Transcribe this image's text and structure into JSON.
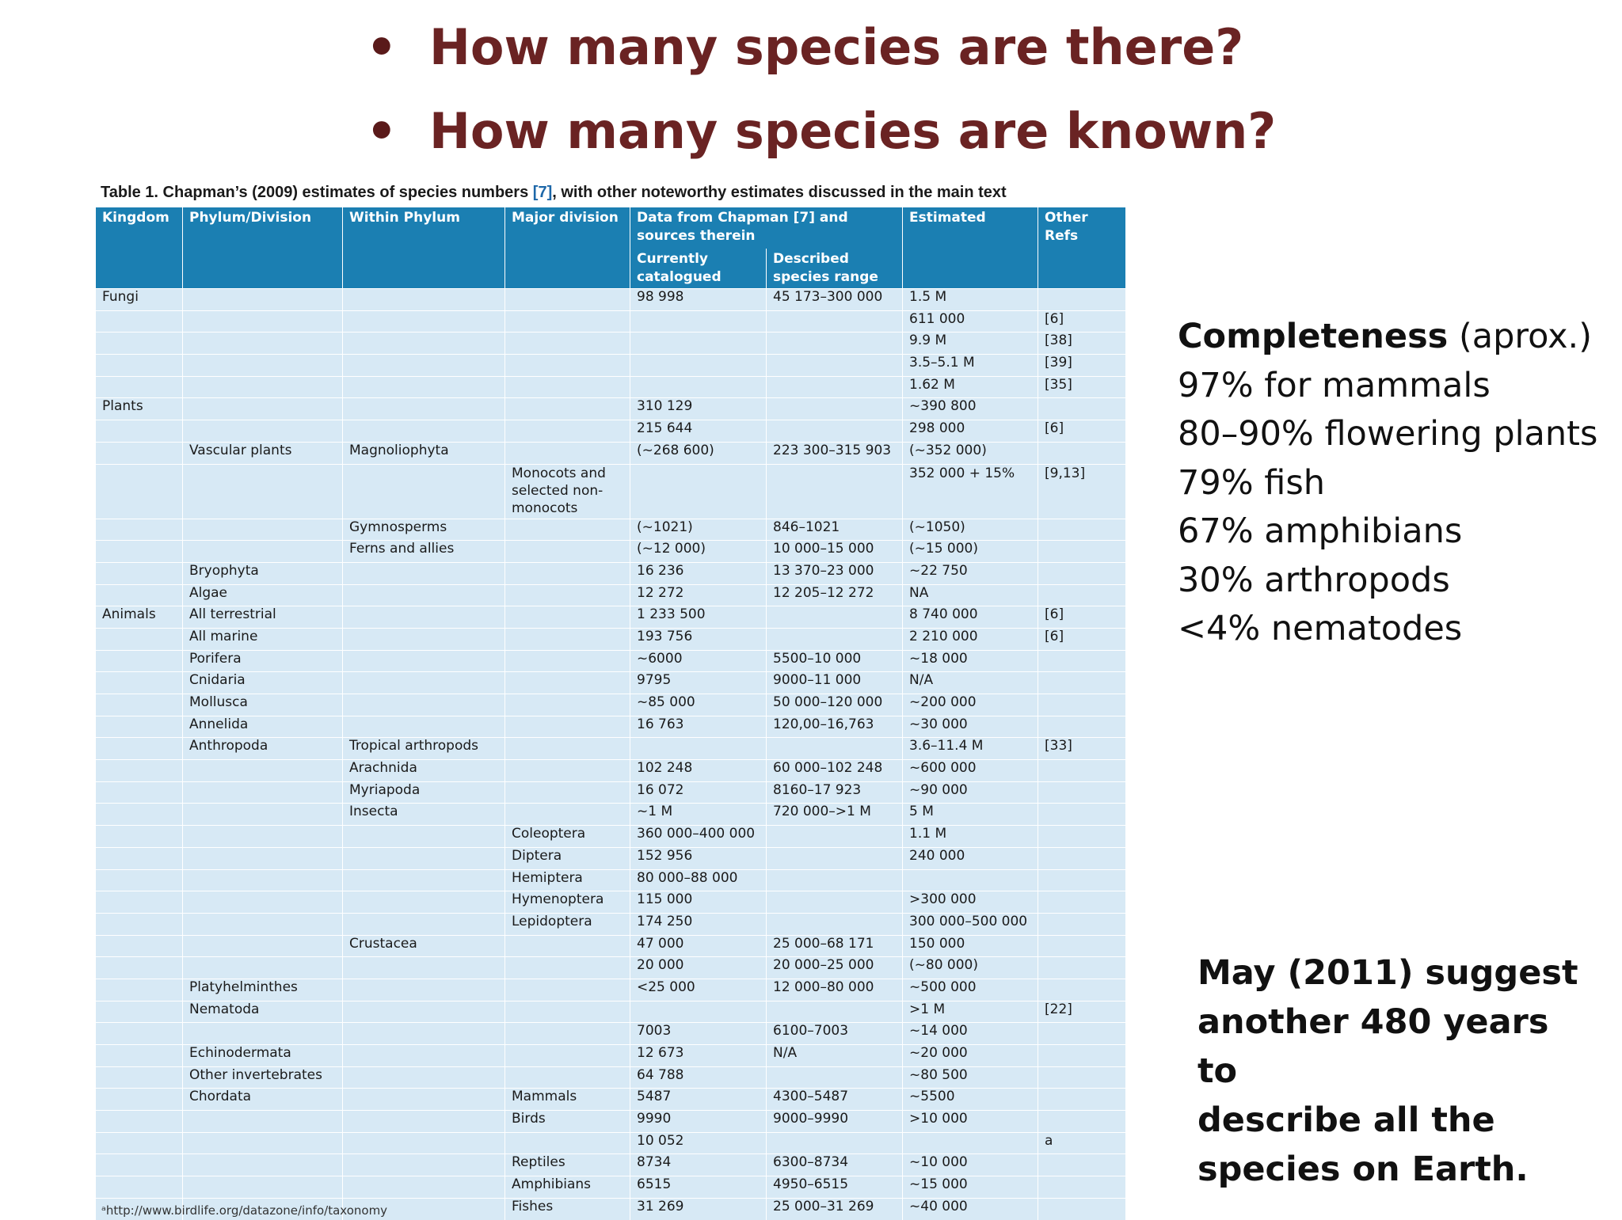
{
  "heading": {
    "bullets": [
      "How many species are there?",
      "How many species are known?"
    ],
    "bullet_glyph": "•"
  },
  "table": {
    "caption_prefix": "Table 1. Chapman’s (2009) estimates of species numbers",
    "caption_ref": "[7]",
    "caption_suffix": ", with other noteworthy estimates discussed in the main text",
    "headers": {
      "kingdom": "Kingdom",
      "phylum": "Phylum/Division",
      "within": "Within Phylum",
      "major": "Major division",
      "data_from": "Data from Chapman [7] and sources therein",
      "estimated": "Estimated",
      "other_refs": "Other Refs",
      "currently": "Currently catalogued",
      "described": "Described species range"
    },
    "rows": [
      {
        "kingdom": "Fungi",
        "phylum": "",
        "within": "",
        "major": "",
        "cat": "98 998",
        "range": "45 173–300 000",
        "est": "1.5 M",
        "refs": ""
      },
      {
        "kingdom": "",
        "phylum": "",
        "within": "",
        "major": "",
        "cat": "",
        "range": "",
        "est": "611 000",
        "refs": "[6]"
      },
      {
        "kingdom": "",
        "phylum": "",
        "within": "",
        "major": "",
        "cat": "",
        "range": "",
        "est": "9.9 M",
        "refs": "[38]"
      },
      {
        "kingdom": "",
        "phylum": "",
        "within": "",
        "major": "",
        "cat": "",
        "range": "",
        "est": "3.5–5.1 M",
        "refs": "[39]"
      },
      {
        "kingdom": "",
        "phylum": "",
        "within": "",
        "major": "",
        "cat": "",
        "range": "",
        "est": "1.62 M",
        "refs": "[35]"
      },
      {
        "kingdom": "Plants",
        "phylum": "",
        "within": "",
        "major": "",
        "cat": "310 129",
        "range": "",
        "est": "~390 800",
        "refs": ""
      },
      {
        "kingdom": "",
        "phylum": "",
        "within": "",
        "major": "",
        "cat": "215 644",
        "range": "",
        "est": "298 000",
        "refs": "[6]"
      },
      {
        "kingdom": "",
        "phylum": "Vascular plants",
        "within": "Magnoliophyta",
        "major": "",
        "cat": "(~268 600)",
        "range": "223 300–315 903",
        "est": "(~352 000)",
        "refs": ""
      },
      {
        "kingdom": "",
        "phylum": "",
        "within": "",
        "major": "Monocots and selected non-monocots",
        "cat": "",
        "range": "",
        "est": "352 000 + 15%",
        "refs": "[9,13]",
        "tall": true
      },
      {
        "kingdom": "",
        "phylum": "",
        "within": "Gymnosperms",
        "major": "",
        "cat": "(~1021)",
        "range": "846–1021",
        "est": "(~1050)",
        "refs": ""
      },
      {
        "kingdom": "",
        "phylum": "",
        "within": "Ferns and allies",
        "major": "",
        "cat": "(~12 000)",
        "range": "10 000–15 000",
        "est": "(~15 000)",
        "refs": ""
      },
      {
        "kingdom": "",
        "phylum": "Bryophyta",
        "within": "",
        "major": "",
        "cat": "16 236",
        "range": "13 370–23 000",
        "est": "~22 750",
        "refs": ""
      },
      {
        "kingdom": "",
        "phylum": "Algae",
        "within": "",
        "major": "",
        "cat": "12 272",
        "range": "12 205–12 272",
        "est": "NA",
        "refs": ""
      },
      {
        "kingdom": "Animals",
        "phylum": "All terrestrial",
        "within": "",
        "major": "",
        "cat": "1 233 500",
        "range": "",
        "est": "8 740 000",
        "refs": "[6]"
      },
      {
        "kingdom": "",
        "phylum": "All marine",
        "within": "",
        "major": "",
        "cat": "193 756",
        "range": "",
        "est": "2 210 000",
        "refs": "[6]"
      },
      {
        "kingdom": "",
        "phylum": "Porifera",
        "within": "",
        "major": "",
        "cat": "~6000",
        "range": "5500–10 000",
        "est": "~18 000",
        "refs": ""
      },
      {
        "kingdom": "",
        "phylum": "Cnidaria",
        "within": "",
        "major": "",
        "cat": "9795",
        "range": "9000–11 000",
        "est": "N/A",
        "refs": ""
      },
      {
        "kingdom": "",
        "phylum": "Mollusca",
        "within": "",
        "major": "",
        "cat": "~85 000",
        "range": "50 000–120 000",
        "est": "~200 000",
        "refs": ""
      },
      {
        "kingdom": "",
        "phylum": "Annelida",
        "within": "",
        "major": "",
        "cat": "16 763",
        "range": "120,00–16,763",
        "est": "~30 000",
        "refs": ""
      },
      {
        "kingdom": "",
        "phylum": "Anthropoda",
        "within": "Tropical arthropods",
        "major": "",
        "cat": "",
        "range": "",
        "est": "3.6–11.4 M",
        "refs": "[33]"
      },
      {
        "kingdom": "",
        "phylum": "",
        "within": "Arachnida",
        "major": "",
        "cat": "102 248",
        "range": "60 000–102 248",
        "est": "~600 000",
        "refs": ""
      },
      {
        "kingdom": "",
        "phylum": "",
        "within": "Myriapoda",
        "major": "",
        "cat": "16 072",
        "range": "8160–17 923",
        "est": "~90 000",
        "refs": ""
      },
      {
        "kingdom": "",
        "phylum": "",
        "within": "Insecta",
        "major": "",
        "cat": "~1 M",
        "range": "720 000–>1 M",
        "est": "5 M",
        "refs": ""
      },
      {
        "kingdom": "",
        "phylum": "",
        "within": "",
        "major": "Coleoptera",
        "cat": "360 000–400 000",
        "range": "",
        "est": "1.1 M",
        "refs": ""
      },
      {
        "kingdom": "",
        "phylum": "",
        "within": "",
        "major": "Diptera",
        "cat": "152 956",
        "range": "",
        "est": "240 000",
        "refs": ""
      },
      {
        "kingdom": "",
        "phylum": "",
        "within": "",
        "major": "Hemiptera",
        "cat": "80 000–88 000",
        "range": "",
        "est": "",
        "refs": ""
      },
      {
        "kingdom": "",
        "phylum": "",
        "within": "",
        "major": "Hymenoptera",
        "cat": "115 000",
        "range": "",
        "est": ">300 000",
        "refs": ""
      },
      {
        "kingdom": "",
        "phylum": "",
        "within": "",
        "major": "Lepidoptera",
        "cat": "174 250",
        "range": "",
        "est": "300 000–500 000",
        "refs": ""
      },
      {
        "kingdom": "",
        "phylum": "",
        "within": "Crustacea",
        "major": "",
        "cat": "47 000",
        "range": "25 000–68 171",
        "est": "150 000",
        "refs": ""
      },
      {
        "kingdom": "",
        "phylum": "",
        "within": "",
        "major": "",
        "cat": "20 000",
        "range": "20 000–25 000",
        "est": "(~80 000)",
        "refs": ""
      },
      {
        "kingdom": "",
        "phylum": "Platyhelminthes",
        "within": "",
        "major": "",
        "cat": "<25 000",
        "range": "12 000–80 000",
        "est": "~500 000",
        "refs": ""
      },
      {
        "kingdom": "",
        "phylum": "Nematoda",
        "within": "",
        "major": "",
        "cat": "",
        "range": "",
        "est": ">1 M",
        "refs": "[22]"
      },
      {
        "kingdom": "",
        "phylum": "",
        "within": "",
        "major": "",
        "cat": "7003",
        "range": "6100–7003",
        "est": "~14 000",
        "refs": ""
      },
      {
        "kingdom": "",
        "phylum": "Echinodermata",
        "within": "",
        "major": "",
        "cat": "12 673",
        "range": "N/A",
        "est": "~20 000",
        "refs": ""
      },
      {
        "kingdom": "",
        "phylum": "Other invertebrates",
        "within": "",
        "major": "",
        "cat": "64 788",
        "range": "",
        "est": "~80 500",
        "refs": ""
      },
      {
        "kingdom": "",
        "phylum": "Chordata",
        "within": "",
        "major": "Mammals",
        "cat": "5487",
        "range": "4300–5487",
        "est": "~5500",
        "refs": ""
      },
      {
        "kingdom": "",
        "phylum": "",
        "within": "",
        "major": "Birds",
        "cat": "9990",
        "range": "9000–9990",
        "est": ">10 000",
        "refs": ""
      },
      {
        "kingdom": "",
        "phylum": "",
        "within": "",
        "major": "",
        "cat": "10 052",
        "range": "",
        "est": "",
        "refs": "a"
      },
      {
        "kingdom": "",
        "phylum": "",
        "within": "",
        "major": "Reptiles",
        "cat": "8734",
        "range": "6300–8734",
        "est": "~10 000",
        "refs": ""
      },
      {
        "kingdom": "",
        "phylum": "",
        "within": "",
        "major": "Amphibians",
        "cat": "6515",
        "range": "4950–6515",
        "est": "~15 000",
        "refs": ""
      },
      {
        "kingdom": "",
        "phylum": "",
        "within": "",
        "major": "Fishes",
        "cat": "31 269",
        "range": "25 000–31 269",
        "est": "~40 000",
        "refs": ""
      }
    ],
    "footnote": "ᵃhttp://www.birdlife.org/datazone/info/taxonomy"
  },
  "completeness": {
    "title_bold": "Completeness",
    "title_rest": " (aprox.)",
    "items": [
      "97% for mammals",
      "80–90% flowering plants",
      "79% fish",
      "67% amphibians",
      "30% arthropods",
      "<4% nematodes"
    ]
  },
  "may_note": [
    "May (2011) suggest",
    "another 480 years to",
    "describe all the",
    "species on Earth."
  ],
  "colors": {
    "heading": "#6a2323",
    "table_header": "#1b7fb2",
    "table_cell": "#d7e9f5",
    "caption_ref": "#1d67a8"
  }
}
